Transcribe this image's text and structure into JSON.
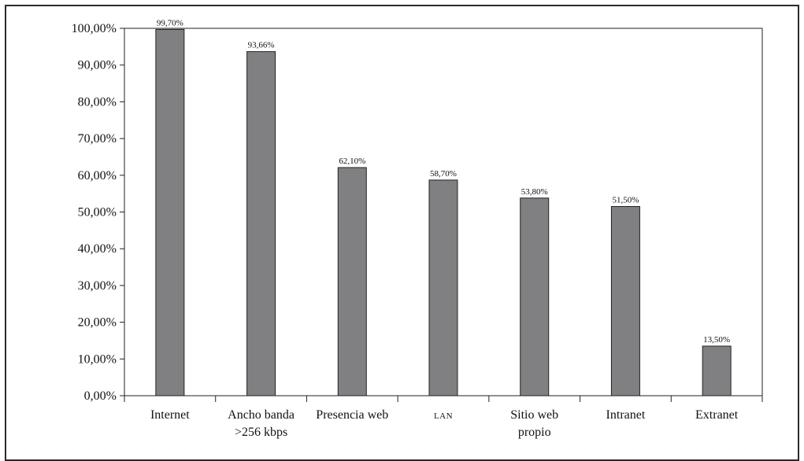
{
  "chart_data": {
    "type": "bar",
    "categories": [
      [
        "Internet"
      ],
      [
        "Ancho banda",
        ">256 kbps"
      ],
      [
        "Presencia web"
      ],
      [
        "LAN"
      ],
      [
        "Sitio web",
        "propio"
      ],
      [
        "Intranet"
      ],
      [
        "Extranet"
      ]
    ],
    "values": [
      99.7,
      93.66,
      62.1,
      58.7,
      53.8,
      51.5,
      13.5
    ],
    "data_labels": [
      "99,70%",
      "93,66%",
      "62,10%",
      "58,70%",
      "53,80%",
      "51,50%",
      "13,50%"
    ],
    "y_ticks": [
      "0,00%",
      "10,00%",
      "20,00%",
      "30,00%",
      "40,00%",
      "50,00%",
      "60,00%",
      "70,00%",
      "80,00%",
      "90,00%",
      "100,00%"
    ],
    "ylim": [
      0,
      100
    ],
    "bar_color": "#808083",
    "grid": false,
    "title": "",
    "xlabel": "",
    "ylabel": ""
  }
}
